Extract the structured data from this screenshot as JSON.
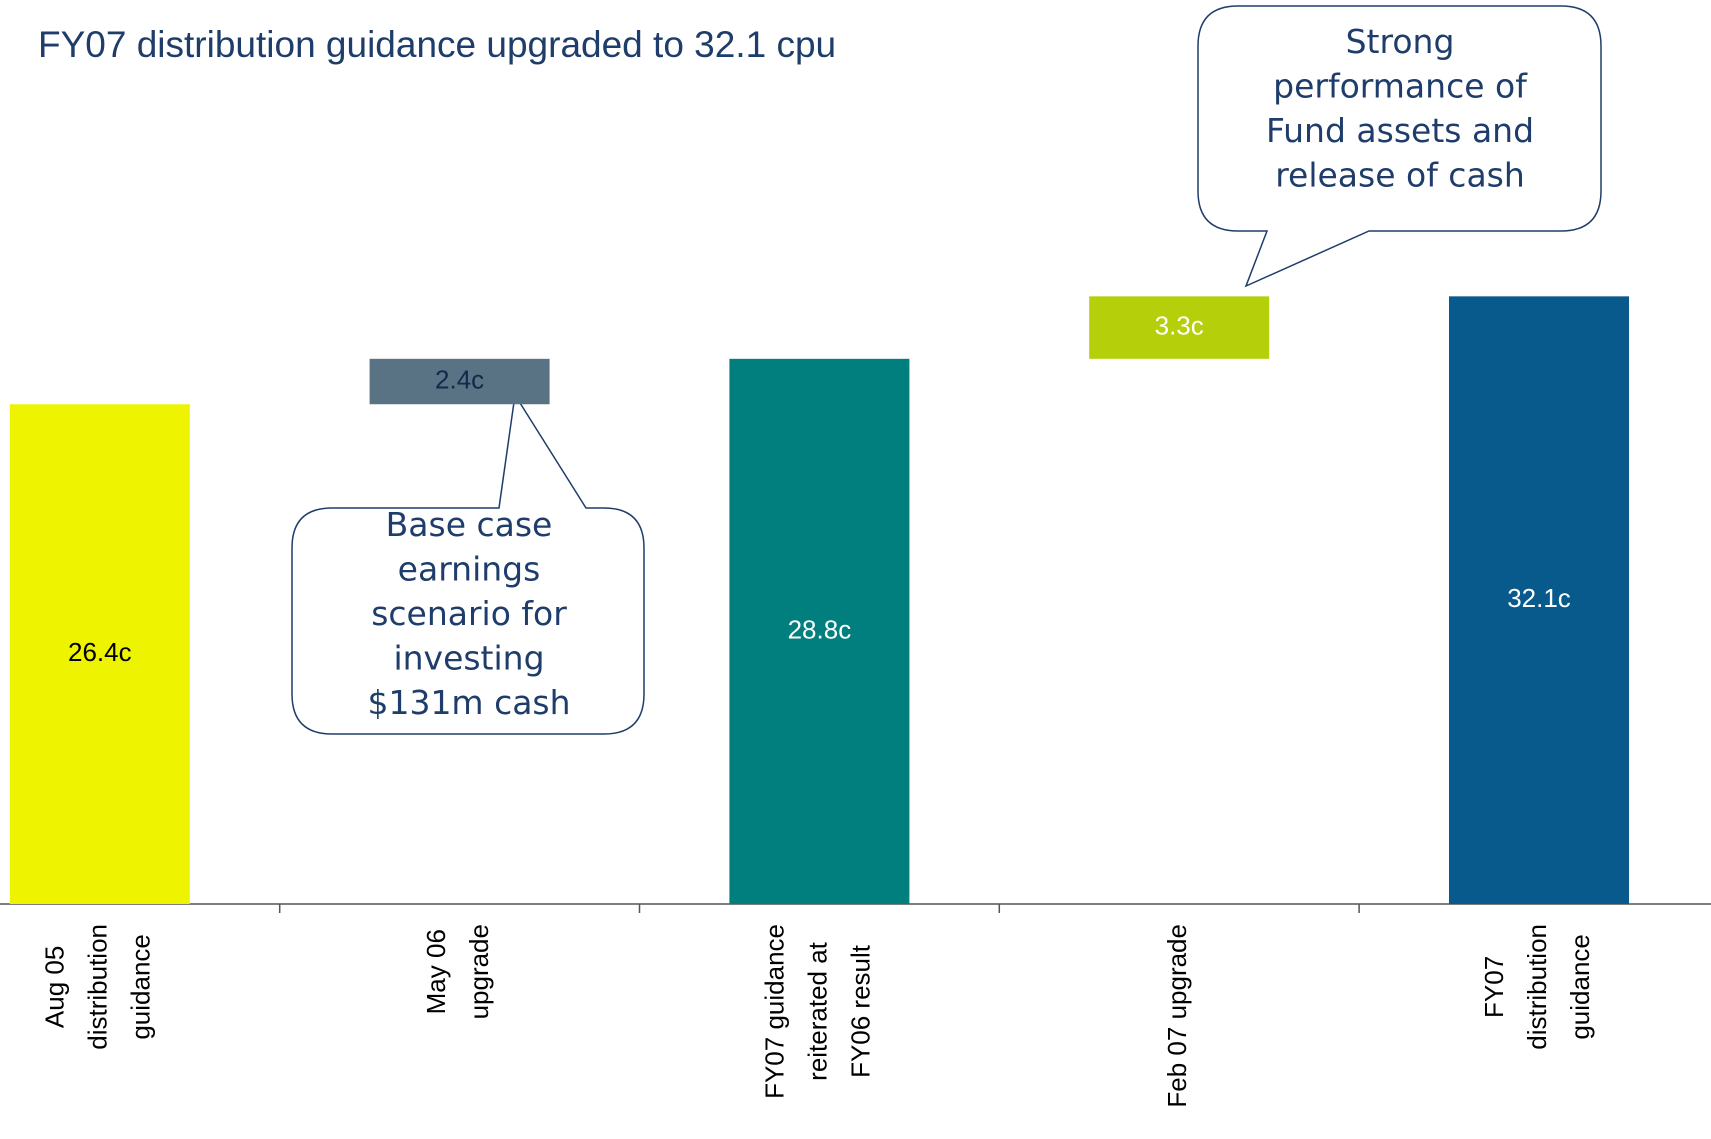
{
  "chart_data": {
    "type": "waterfall",
    "title": "FY07 distribution guidance upgraded to 32.1 cpu",
    "categories": [
      "Aug 05\ndistribution\nguidance",
      "May 06\nupgrade",
      "FY07 guidance\nreiterated at\nFY06 result",
      "Feb 07 upgrade",
      "FY07\ndistribution\nguidance"
    ],
    "values": [
      26.4,
      2.4,
      28.8,
      3.3,
      32.1
    ],
    "value_labels": [
      "26.4c",
      "2.4c",
      "28.8c",
      "3.3c",
      "32.1c"
    ],
    "measure": [
      "absolute",
      "relative",
      "absolute",
      "relative",
      "absolute"
    ],
    "colors": [
      "#eef400",
      "#5a7384",
      "#007f7e",
      "#b5cf0b",
      "#085a8c"
    ],
    "label_colors": [
      "#000000",
      "#0f2a4a",
      "#ffffff",
      "#ffffff",
      "#ffffff"
    ],
    "annotations": [
      "Base case\nearnings\nscenario for\ninvesting\n$131m cash",
      "Strong\nperformance of\nFund assets and\nrelease of cash"
    ]
  }
}
